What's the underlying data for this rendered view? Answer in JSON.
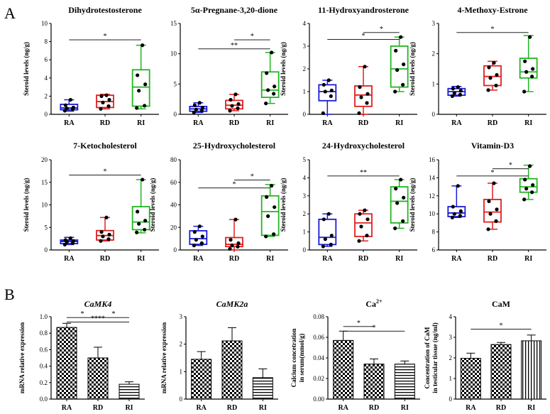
{
  "panel_labels": [
    "A",
    "B"
  ],
  "colors": {
    "RA": "#1a1ad6",
    "RD": "#e01f1f",
    "RI": "#22b522",
    "axis": "#000000",
    "point": "#000000"
  },
  "chart_data": [
    {
      "id": "a1",
      "type": "box",
      "title": "Dihydrotestosterone",
      "ylabel": "Steroid levels (ng/g)",
      "categories": [
        "RA",
        "RD",
        "RI"
      ],
      "ylim": [
        0,
        10
      ],
      "ticks": [
        0,
        2,
        4,
        6,
        8,
        10
      ],
      "boxes": [
        {
          "min": 0.35,
          "q1": 0.5,
          "median": 0.7,
          "q3": 1.1,
          "max": 1.6,
          "points": [
            0.4,
            0.55,
            0.65,
            0.75,
            1.0,
            1.6
          ]
        },
        {
          "min": 0.6,
          "q1": 0.75,
          "median": 1.4,
          "q3": 2.1,
          "max": 2.2,
          "points": [
            0.6,
            0.9,
            1.3,
            1.6,
            2.0,
            2.1
          ]
        },
        {
          "min": 0.6,
          "q1": 0.9,
          "median": 3.0,
          "q3": 4.9,
          "max": 7.6,
          "points": [
            0.7,
            0.95,
            2.6,
            3.3,
            4.3,
            7.6
          ]
        }
      ],
      "brackets": [
        {
          "from": 0,
          "to": 2,
          "level": 8.2,
          "label": "*"
        }
      ]
    },
    {
      "id": "a2",
      "type": "box",
      "title": "5α-Pregnane-3,20-dione",
      "ylabel": "",
      "categories": [
        "RA",
        "RD",
        "RI"
      ],
      "ylim": [
        0,
        15
      ],
      "ticks": [
        0,
        5,
        10,
        15
      ],
      "boxes": [
        {
          "min": 0.3,
          "q1": 0.5,
          "median": 0.9,
          "q3": 1.3,
          "max": 1.9,
          "points": [
            0.3,
            0.6,
            0.8,
            1.1,
            1.5,
            1.9
          ]
        },
        {
          "min": 0.6,
          "q1": 0.9,
          "median": 1.5,
          "q3": 2.3,
          "max": 3.3,
          "points": [
            0.6,
            1.0,
            1.4,
            1.7,
            2.4,
            3.3
          ]
        },
        {
          "min": 1.8,
          "q1": 2.8,
          "median": 4.0,
          "q3": 7.0,
          "max": 10.2,
          "points": [
            1.8,
            3.4,
            4.0,
            4.6,
            6.8,
            10.2
          ]
        }
      ],
      "brackets": [
        {
          "from": 1,
          "to": 2,
          "level": 12.3,
          "label": "*"
        },
        {
          "from": 0,
          "to": 2,
          "level": 10.8,
          "label": "**"
        }
      ]
    },
    {
      "id": "a3",
      "type": "box",
      "title": "11-Hydroxyandrosterone",
      "ylabel": "Steroid levels (ng/g)",
      "categories": [
        "RA",
        "RD",
        "RI"
      ],
      "ylim": [
        0,
        4
      ],
      "ticks": [
        0,
        1,
        2,
        3,
        4
      ],
      "boxes": [
        {
          "min": 0.0,
          "q1": 0.6,
          "median": 1.0,
          "q3": 1.3,
          "max": 1.5,
          "points": [
            0.05,
            0.8,
            1.0,
            1.05,
            1.3,
            1.5
          ]
        },
        {
          "min": 0.0,
          "q1": 0.35,
          "median": 0.85,
          "q3": 1.25,
          "max": 2.1,
          "points": [
            0.05,
            0.5,
            0.75,
            0.9,
            1.2,
            2.1
          ]
        },
        {
          "min": 1.0,
          "q1": 1.2,
          "median": 2.0,
          "q3": 3.0,
          "max": 3.4,
          "points": [
            1.0,
            1.3,
            1.95,
            2.2,
            2.8,
            3.4
          ]
        }
      ],
      "brackets": [
        {
          "from": 1,
          "to": 2,
          "level": 3.6,
          "label": "*"
        },
        {
          "from": 0,
          "to": 2,
          "level": 3.3,
          "label": "*"
        }
      ]
    },
    {
      "id": "a4",
      "type": "box",
      "title": "4-Methoxy-Estrone",
      "ylabel": "Steroid levels (ng/g)",
      "categories": [
        "RA",
        "RD",
        "RI"
      ],
      "ylim": [
        0,
        3
      ],
      "ticks": [
        0,
        1,
        2,
        3
      ],
      "boxes": [
        {
          "min": 0.6,
          "q1": 0.63,
          "median": 0.75,
          "q3": 0.85,
          "max": 0.92,
          "points": [
            0.6,
            0.65,
            0.7,
            0.78,
            0.85,
            0.9
          ]
        },
        {
          "min": 0.8,
          "q1": 0.95,
          "median": 1.25,
          "q3": 1.6,
          "max": 1.75,
          "points": [
            0.8,
            0.95,
            1.2,
            1.3,
            1.55,
            1.7
          ]
        },
        {
          "min": 0.75,
          "q1": 1.2,
          "median": 1.4,
          "q3": 1.85,
          "max": 2.6,
          "points": [
            0.75,
            1.25,
            1.4,
            1.5,
            1.75,
            2.55
          ]
        }
      ],
      "brackets": [
        {
          "from": 0,
          "to": 2,
          "level": 2.7,
          "label": "*"
        }
      ]
    },
    {
      "id": "a5",
      "type": "box",
      "title": "7-Ketocholesterol",
      "ylabel": "Steroid levels (ng/g)",
      "categories": [
        "RA",
        "RD",
        "RI"
      ],
      "ylim": [
        0,
        20
      ],
      "ticks": [
        0,
        5,
        10,
        15,
        20
      ],
      "boxes": [
        {
          "min": 1.2,
          "q1": 1.4,
          "median": 1.9,
          "q3": 2.2,
          "max": 2.8,
          "points": [
            1.2,
            1.5,
            1.8,
            2.0,
            2.2,
            2.6
          ]
        },
        {
          "min": 2.0,
          "q1": 2.2,
          "median": 3.2,
          "q3": 4.3,
          "max": 7.2,
          "points": [
            2.0,
            2.4,
            3.0,
            3.4,
            4.0,
            7.2
          ]
        },
        {
          "min": 3.8,
          "q1": 4.5,
          "median": 6.2,
          "q3": 9.6,
          "max": 15.6,
          "points": [
            3.9,
            4.5,
            5.8,
            6.5,
            8.5,
            15.6
          ]
        }
      ],
      "brackets": [
        {
          "from": 0,
          "to": 2,
          "level": 16.6,
          "label": "*"
        }
      ]
    },
    {
      "id": "a6",
      "type": "box",
      "title": "25-Hydroxycholesterol",
      "ylabel": "Steroid levels (ng/g)",
      "categories": [
        "RA",
        "RD",
        "RI"
      ],
      "ylim": [
        0,
        80
      ],
      "ticks": [
        0,
        20,
        40,
        60,
        80
      ],
      "boxes": [
        {
          "min": 4,
          "q1": 5,
          "median": 10,
          "q3": 17,
          "max": 21,
          "points": [
            4,
            6,
            9,
            12,
            16,
            21
          ]
        },
        {
          "min": 0,
          "q1": 3,
          "median": 5,
          "q3": 11,
          "max": 27,
          "points": [
            1,
            3,
            4,
            6,
            9,
            27
          ]
        },
        {
          "min": 12,
          "q1": 13,
          "median": 34,
          "q3": 48,
          "max": 58,
          "points": [
            12,
            14,
            30,
            38,
            47,
            57
          ]
        }
      ],
      "brackets": [
        {
          "from": 1,
          "to": 2,
          "level": 62,
          "label": "*"
        },
        {
          "from": 0,
          "to": 2,
          "level": 55,
          "label": "*"
        }
      ]
    },
    {
      "id": "a7",
      "type": "box",
      "title": "24-Hydroxycholesterol",
      "ylabel": "Steroid levels (ng/g)",
      "categories": [
        "RA",
        "RD",
        "RI"
      ],
      "ylim": [
        0,
        5
      ],
      "ticks": [
        0,
        1,
        2,
        3,
        4,
        5
      ],
      "boxes": [
        {
          "min": 0.2,
          "q1": 0.3,
          "median": 0.7,
          "q3": 1.7,
          "max": 2.0,
          "points": [
            0.2,
            0.3,
            0.6,
            0.8,
            1.7,
            2.0
          ]
        },
        {
          "min": 0.5,
          "q1": 0.75,
          "median": 1.5,
          "q3": 2.0,
          "max": 2.2,
          "points": [
            0.5,
            0.8,
            1.3,
            1.7,
            2.0,
            2.2
          ]
        },
        {
          "min": 1.2,
          "q1": 1.5,
          "median": 2.7,
          "q3": 3.5,
          "max": 3.9,
          "points": [
            1.2,
            1.6,
            2.6,
            2.9,
            3.4,
            3.9
          ]
        }
      ],
      "brackets": [
        {
          "from": 0,
          "to": 2,
          "level": 4.1,
          "label": "**"
        }
      ]
    },
    {
      "id": "a8",
      "type": "box",
      "title": "Vitamin-D3",
      "ylabel": "Steroid levels (ng/g)",
      "categories": [
        "RA",
        "RD",
        "RI"
      ],
      "ylim": [
        6,
        16
      ],
      "ticks": [
        6,
        8,
        10,
        12,
        14,
        16
      ],
      "boxes": [
        {
          "min": 9.6,
          "q1": 9.7,
          "median": 10.1,
          "q3": 10.8,
          "max": 13.1,
          "points": [
            9.6,
            9.8,
            10.0,
            10.3,
            10.8,
            13.1
          ]
        },
        {
          "min": 8.3,
          "q1": 9.1,
          "median": 10.2,
          "q3": 11.6,
          "max": 13.4,
          "points": [
            8.3,
            9.2,
            10.0,
            10.5,
            11.4,
            13.4
          ]
        },
        {
          "min": 11.6,
          "q1": 12.4,
          "median": 13.0,
          "q3": 13.9,
          "max": 15.4,
          "points": [
            11.6,
            12.4,
            12.8,
            13.2,
            13.8,
            15.3
          ]
        }
      ],
      "brackets": [
        {
          "from": 1,
          "to": 2,
          "level": 15.0,
          "label": "*"
        },
        {
          "from": 0,
          "to": 2,
          "level": 14.2,
          "label": "*"
        }
      ]
    },
    {
      "id": "b1",
      "type": "bar",
      "title": "CaMK4",
      "title_italic": true,
      "ylabel": "mRNA relative expression",
      "categories": [
        "RA",
        "RD",
        "RI"
      ],
      "ylim": [
        0,
        1.0
      ],
      "ticks": [
        0,
        0.2,
        0.4,
        0.6,
        0.8,
        1.0
      ],
      "tick_labels": [
        "0.0",
        "0.2",
        "0.4",
        "0.6",
        "0.8",
        "1.0"
      ],
      "values": [
        0.87,
        0.5,
        0.18
      ],
      "errors": [
        0.05,
        0.13,
        0.03
      ],
      "patterns": [
        "check",
        "check",
        "hstripe"
      ],
      "brackets": [
        {
          "from": 0,
          "to": 1,
          "level": 0.99,
          "label": "*"
        },
        {
          "from": 1,
          "to": 2,
          "level": 0.99,
          "label": "*"
        },
        {
          "from": 0,
          "to": 2,
          "level": 0.935,
          "label": "****"
        }
      ]
    },
    {
      "id": "b2",
      "type": "bar",
      "title": "CaMK2a",
      "title_italic": true,
      "ylabel": "mRNA relative expression",
      "categories": [
        "RA",
        "RD",
        "RI"
      ],
      "ylim": [
        0,
        3
      ],
      "ticks": [
        0,
        1,
        2,
        3
      ],
      "tick_labels": [
        "0",
        "1",
        "2",
        "3"
      ],
      "values": [
        1.45,
        2.12,
        0.78
      ],
      "errors": [
        0.28,
        0.48,
        0.32
      ],
      "patterns": [
        "check",
        "check",
        "hstripe"
      ],
      "brackets": []
    },
    {
      "id": "b3",
      "type": "bar",
      "title": "Ca",
      "title_sup": "2+",
      "ylabel": "Calcium concetration\nin serum(mmol/g)",
      "categories": [
        "RA",
        "RD",
        "RI"
      ],
      "ylim": [
        0,
        0.08
      ],
      "ticks": [
        0,
        0.02,
        0.04,
        0.06,
        0.08
      ],
      "tick_labels": [
        "0.00",
        "0.02",
        "0.04",
        "0.06",
        "0.08"
      ],
      "values": [
        0.057,
        0.034,
        0.034
      ],
      "errors": [
        0.009,
        0.005,
        0.003
      ],
      "patterns": [
        "check",
        "check",
        "hstripe"
      ],
      "brackets": [
        {
          "from": 0,
          "to": 1,
          "level": 0.0705,
          "label": "*"
        },
        {
          "from": 0,
          "to": 2,
          "level": 0.066,
          "label": "*"
        }
      ]
    },
    {
      "id": "b4",
      "type": "bar",
      "title": "CaM",
      "ylabel": "Concentration of CaM\nin testicular tissue (ng/ml)",
      "categories": [
        "RA",
        "RD",
        "RI"
      ],
      "ylim": [
        0,
        4
      ],
      "ticks": [
        0,
        1,
        2,
        3,
        4
      ],
      "tick_labels": [
        "0",
        "1",
        "2",
        "3",
        "4"
      ],
      "values": [
        1.98,
        2.65,
        2.83
      ],
      "errors": [
        0.25,
        0.1,
        0.28
      ],
      "patterns": [
        "check",
        "check",
        "vstripe"
      ],
      "brackets": [
        {
          "from": 0,
          "to": 2,
          "level": 3.4,
          "label": "*"
        }
      ]
    }
  ]
}
